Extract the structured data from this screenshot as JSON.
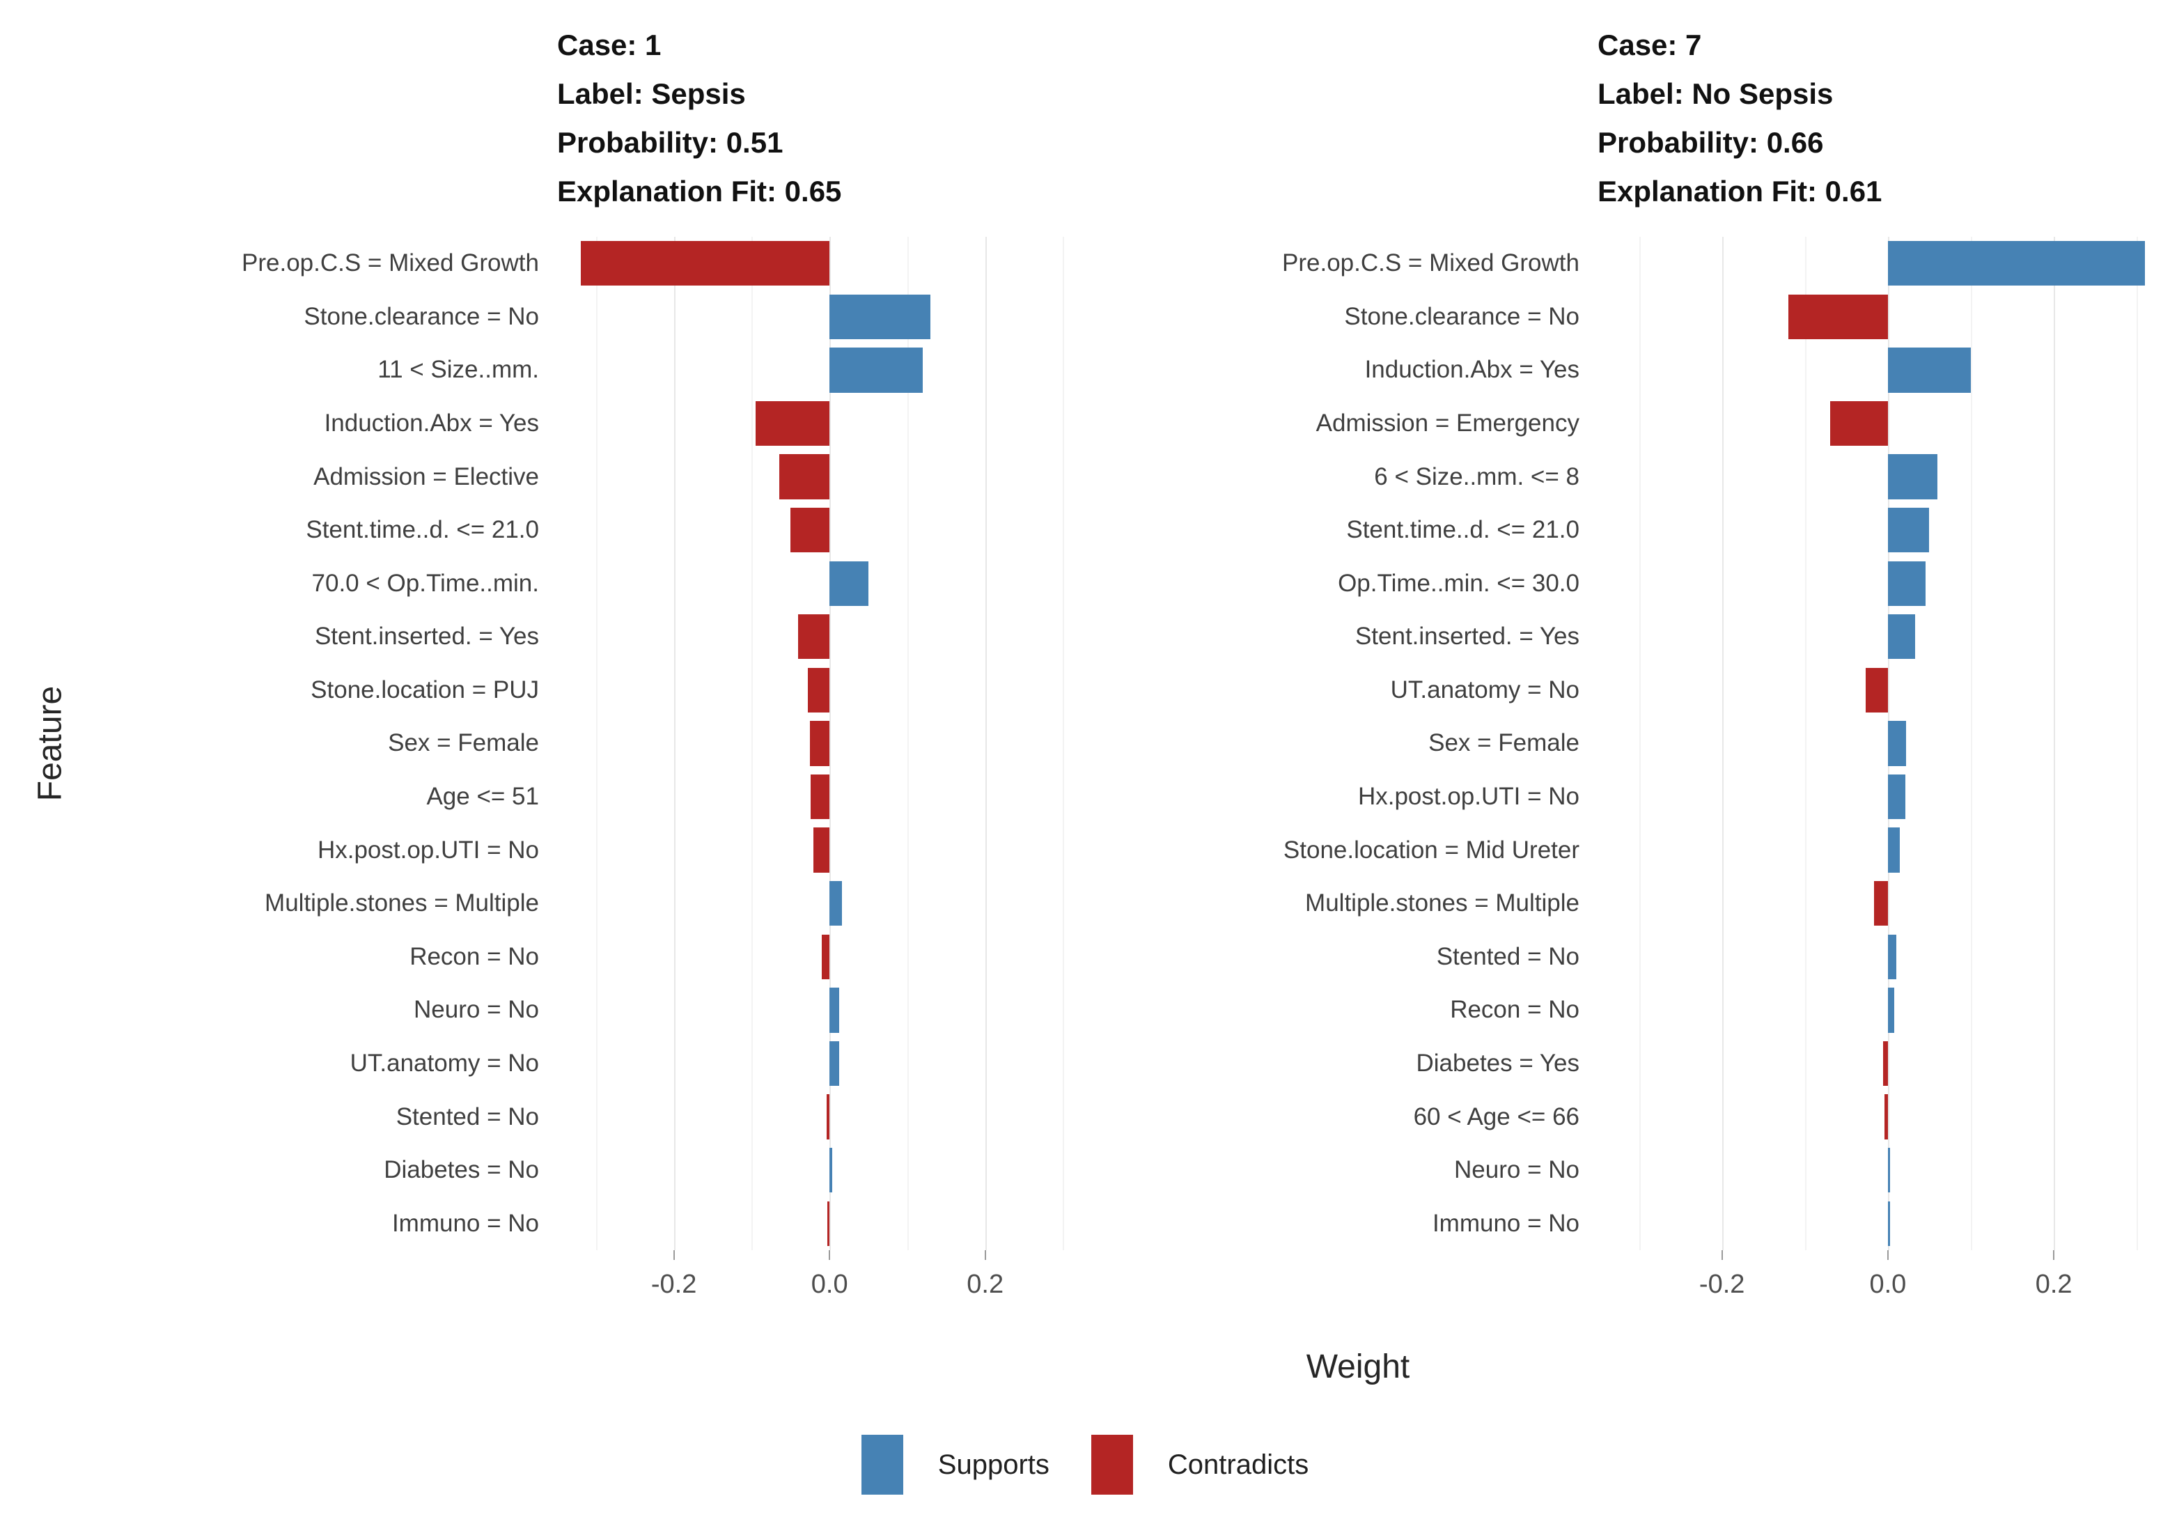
{
  "figure": {
    "x_label": "Weight",
    "y_label": "Feature",
    "background": "#ffffff"
  },
  "legend": {
    "items": [
      {
        "label": "Supports",
        "color": "#4682B4"
      },
      {
        "label": "Contradicts",
        "color": "#B42524"
      }
    ]
  },
  "axis": {
    "range": [
      -0.35,
      0.33
    ],
    "minor_step": 0.1,
    "minor_start": -0.3,
    "minor_end": 0.3,
    "major_ticks": [
      {
        "value": -0.2,
        "label": "-0.2"
      },
      {
        "value": 0.0,
        "label": "0.0"
      },
      {
        "value": 0.2,
        "label": "0.2"
      }
    ]
  },
  "chart_data": [
    {
      "type": "bar",
      "orientation": "horizontal",
      "case": "1",
      "label": "Sepsis",
      "probability": 0.51,
      "explanation_fit": 0.65,
      "title_lines": [
        "Case: 1",
        "Label: Sepsis",
        "Probability: 0.51",
        "Explanation Fit: 0.65"
      ],
      "series_note": "positive weight = Supports (blue), negative = Contradicts (red)",
      "features": [
        {
          "feature": "Pre.op.C.S = Mixed Growth",
          "weight": -0.32
        },
        {
          "feature": "Stone.clearance = No",
          "weight": 0.13
        },
        {
          "feature": "11 < Size..mm.",
          "weight": 0.12
        },
        {
          "feature": "Induction.Abx = Yes",
          "weight": -0.095
        },
        {
          "feature": "Admission = Elective",
          "weight": -0.065
        },
        {
          "feature": "Stent.time..d. <= 21.0",
          "weight": -0.05
        },
        {
          "feature": "70.0 < Op.Time..min.",
          "weight": 0.05
        },
        {
          "feature": "Stent.inserted. = Yes",
          "weight": -0.04
        },
        {
          "feature": "Stone.location = PUJ",
          "weight": -0.028
        },
        {
          "feature": "Sex = Female",
          "weight": -0.025
        },
        {
          "feature": "Age <= 51",
          "weight": -0.024
        },
        {
          "feature": "Hx.post.op.UTI = No",
          "weight": -0.021
        },
        {
          "feature": "Multiple.stones = Multiple",
          "weight": 0.016
        },
        {
          "feature": "Recon = No",
          "weight": -0.01
        },
        {
          "feature": "Neuro = No",
          "weight": 0.012
        },
        {
          "feature": "UT.anatomy = No",
          "weight": 0.012
        },
        {
          "feature": "Stented = No",
          "weight": -0.004
        },
        {
          "feature": "Diabetes = No",
          "weight": 0.003
        },
        {
          "feature": "Immuno = No",
          "weight": -0.002
        }
      ]
    },
    {
      "type": "bar",
      "orientation": "horizontal",
      "case": "7",
      "label": "No Sepsis",
      "probability": 0.66,
      "explanation_fit": 0.61,
      "title_lines": [
        "Case: 7",
        "Label: No Sepsis",
        "Probability: 0.66",
        "Explanation Fit: 0.61"
      ],
      "series_note": "positive weight = Supports (blue), negative = Contradicts (red)",
      "features": [
        {
          "feature": "Pre.op.C.S = Mixed Growth",
          "weight": 0.31
        },
        {
          "feature": "Stone.clearance = No",
          "weight": -0.12
        },
        {
          "feature": "Induction.Abx = Yes",
          "weight": 0.1
        },
        {
          "feature": "Admission = Emergency",
          "weight": -0.07
        },
        {
          "feature": "6 < Size..mm. <= 8",
          "weight": 0.06
        },
        {
          "feature": "Stent.time..d. <= 21.0",
          "weight": 0.05
        },
        {
          "feature": "Op.Time..min. <= 30.0",
          "weight": 0.045
        },
        {
          "feature": "Stent.inserted. = Yes",
          "weight": 0.033
        },
        {
          "feature": "UT.anatomy = No",
          "weight": -0.027
        },
        {
          "feature": "Sex = Female",
          "weight": 0.022
        },
        {
          "feature": "Hx.post.op.UTI = No",
          "weight": 0.021
        },
        {
          "feature": "Stone.location = Mid Ureter",
          "weight": 0.014
        },
        {
          "feature": "Multiple.stones = Multiple",
          "weight": -0.017
        },
        {
          "feature": "Stented = No",
          "weight": 0.01
        },
        {
          "feature": "Recon = No",
          "weight": 0.008
        },
        {
          "feature": "Diabetes = Yes",
          "weight": -0.006
        },
        {
          "feature": "60 < Age <= 66",
          "weight": -0.004
        },
        {
          "feature": "Neuro = No",
          "weight": 0.002
        },
        {
          "feature": "Immuno = No",
          "weight": 0.001
        }
      ]
    }
  ]
}
